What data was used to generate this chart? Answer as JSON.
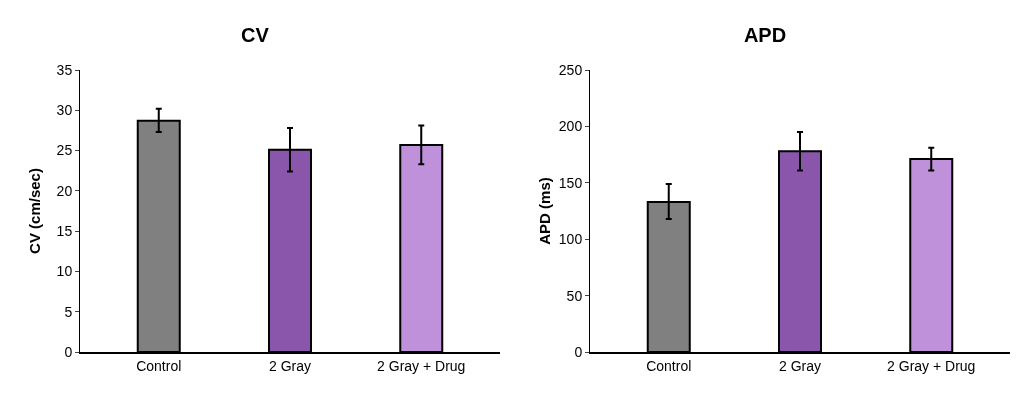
{
  "chart_data": [
    {
      "type": "bar",
      "title": "CV",
      "ylabel": "CV (cm/sec)",
      "categories": [
        "Control",
        "2 Gray",
        "2 Gray + Drug"
      ],
      "values": [
        28.7,
        25.1,
        25.7
      ],
      "colors": [
        "#808080",
        "#8a56ac",
        "#bf91db"
      ],
      "errors": [
        [
          27.3,
          30.2
        ],
        [
          22.4,
          27.8
        ],
        [
          23.3,
          28.1
        ]
      ],
      "ylim": [
        0,
        35
      ],
      "yticks": [
        0,
        5,
        10,
        15,
        20,
        25,
        30,
        35
      ],
      "grid": false
    },
    {
      "type": "bar",
      "title": "APD",
      "ylabel": "APD (ms)",
      "categories": [
        "Control",
        "2 Gray",
        "2 Gray + Drug"
      ],
      "values": [
        133,
        178,
        171
      ],
      "colors": [
        "#808080",
        "#8a56ac",
        "#bf91db"
      ],
      "errors": [
        [
          118,
          149
        ],
        [
          161,
          195
        ],
        [
          161,
          181
        ]
      ],
      "ylim": [
        0,
        250
      ],
      "yticks": [
        0,
        50,
        100,
        150,
        200,
        250
      ],
      "grid": false
    }
  ]
}
